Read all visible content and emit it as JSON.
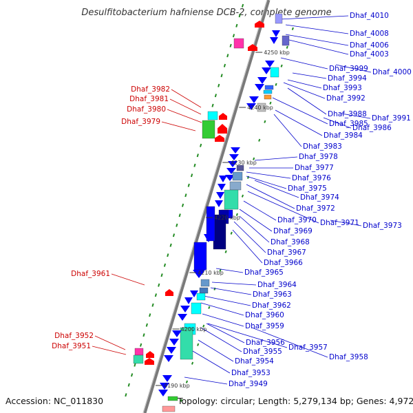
{
  "title": "Desulfitobacterium hafniense DCB-2, complete genome",
  "accession": "Accession: NC_011830",
  "summary": "Topology: circular; Length: 5,279,134 bp; Genes: 4,972",
  "colors": {
    "forward_label": "#cc0000",
    "reverse_label": "#0000cc",
    "backbone": "#7a7a7a",
    "dots": "#228b22",
    "forward_gene": "#ff0000",
    "reverse_gene": "#0000ff",
    "cyan_feature": "#00ffff",
    "green_feature": "#33cc33",
    "teal_feature": "#33ddaa",
    "navy_feature": "#000080"
  },
  "ticks": [
    "4250 kbp",
    "4240 kbp",
    "4230 kbp",
    "4220 kbp",
    "4210 kbp",
    "4200 kbp",
    "4190 kbp"
  ],
  "forward_genes": [
    "Dhaf_3982",
    "Dhaf_3981",
    "Dhaf_3980",
    "Dhaf_3979",
    "Dhaf_3961",
    "Dhaf_3952",
    "Dhaf_3951"
  ],
  "reverse_genes": [
    "Dhaf_4010",
    "Dhaf_4008",
    "Dhaf_4006",
    "Dhaf_4003",
    "Dhaf_4000",
    "Dhaf_3999",
    "Dhaf_3994",
    "Dhaf_3993",
    "Dhaf_3992",
    "Dhaf_3991",
    "Dhaf_3988",
    "Dhaf_3986",
    "Dhaf_3985",
    "Dhaf_3984",
    "Dhaf_3983",
    "Dhaf_3978",
    "Dhaf_3977",
    "Dhaf_3976",
    "Dhaf_3975",
    "Dhaf_3974",
    "Dhaf_3972",
    "Dhaf_3973",
    "Dhaf_3971",
    "Dhaf_3970",
    "Dhaf_3969",
    "Dhaf_3968",
    "Dhaf_3967",
    "Dhaf_3966",
    "Dhaf_3965",
    "Dhaf_3964",
    "Dhaf_3963",
    "Dhaf_3962",
    "Dhaf_3960",
    "Dhaf_3959",
    "Dhaf_3958",
    "Dhaf_3957",
    "Dhaf_3956",
    "Dhaf_3955",
    "Dhaf_3954",
    "Dhaf_3953",
    "Dhaf_3949"
  ]
}
